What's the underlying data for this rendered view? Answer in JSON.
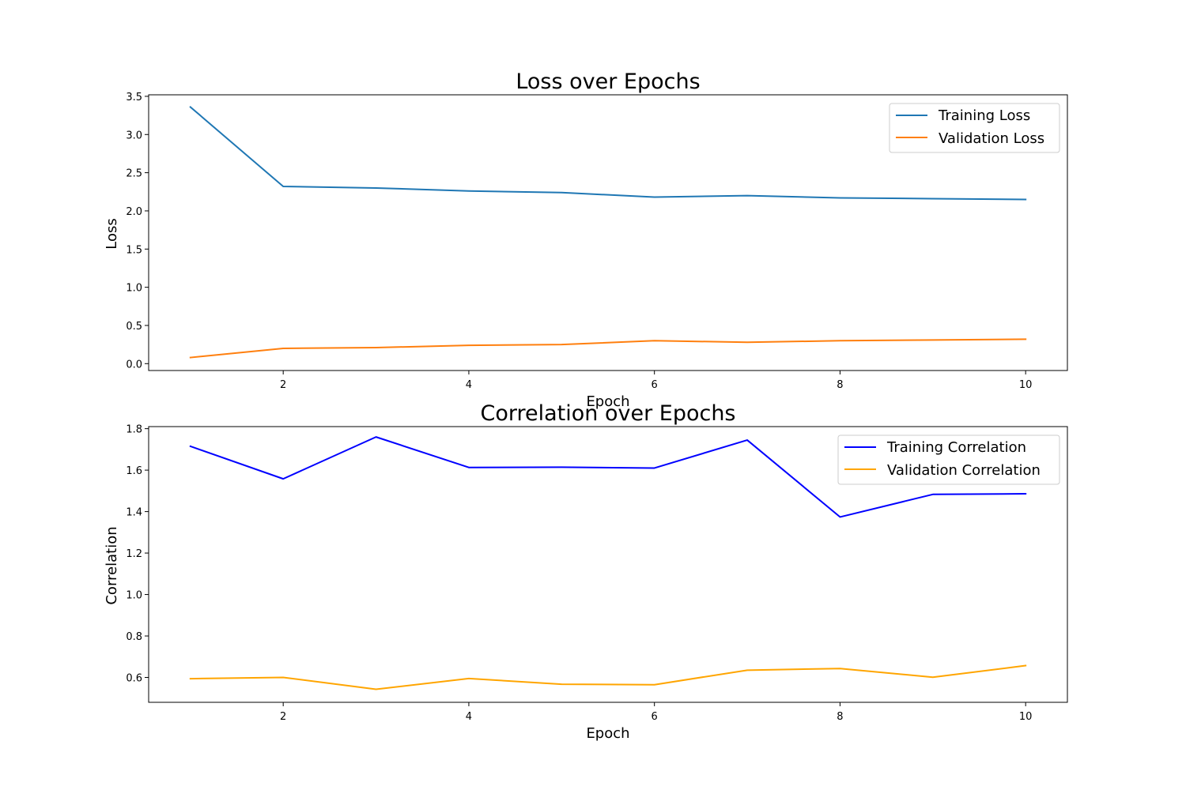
{
  "chart_data": [
    {
      "type": "line",
      "title": "Loss over Epochs",
      "xlabel": "Epoch",
      "ylabel": "Loss",
      "x": [
        1,
        2,
        3,
        4,
        5,
        6,
        7,
        8,
        9,
        10
      ],
      "xlim": [
        0.55,
        10.45
      ],
      "ylim": [
        -0.09,
        3.52
      ],
      "xticks": [
        2,
        4,
        6,
        8,
        10
      ],
      "yticks": [
        0.0,
        0.5,
        1.0,
        1.5,
        2.0,
        2.5,
        3.0,
        3.5
      ],
      "ytick_decimals": 1,
      "grid": false,
      "legend_position": "upper-right",
      "series": [
        {
          "name": "Training Loss",
          "color": "#1f77b4",
          "values": [
            3.36,
            2.32,
            2.3,
            2.26,
            2.24,
            2.18,
            2.2,
            2.17,
            2.16,
            2.15
          ]
        },
        {
          "name": "Validation Loss",
          "color": "#ff7f0e",
          "values": [
            0.08,
            0.2,
            0.21,
            0.24,
            0.25,
            0.3,
            0.28,
            0.3,
            0.31,
            0.32
          ]
        }
      ]
    },
    {
      "type": "line",
      "title": "Correlation over Epochs",
      "xlabel": "Epoch",
      "ylabel": "Correlation",
      "x": [
        1,
        2,
        3,
        4,
        5,
        6,
        7,
        8,
        9,
        10
      ],
      "xlim": [
        0.55,
        10.45
      ],
      "ylim": [
        0.48,
        1.81
      ],
      "xticks": [
        2,
        4,
        6,
        8,
        10
      ],
      "yticks": [
        0.6,
        0.8,
        1.0,
        1.2,
        1.4,
        1.6,
        1.8
      ],
      "ytick_decimals": 1,
      "grid": false,
      "legend_position": "upper-right",
      "series": [
        {
          "name": "Training Correlation",
          "color": "#0000ff",
          "values": [
            1.715,
            1.558,
            1.76,
            1.613,
            1.614,
            1.61,
            1.745,
            1.374,
            1.483,
            1.486
          ]
        },
        {
          "name": "Validation Correlation",
          "color": "#ffa500",
          "values": [
            0.594,
            0.6,
            0.543,
            0.595,
            0.567,
            0.565,
            0.635,
            0.643,
            0.601,
            0.657
          ]
        }
      ]
    }
  ]
}
